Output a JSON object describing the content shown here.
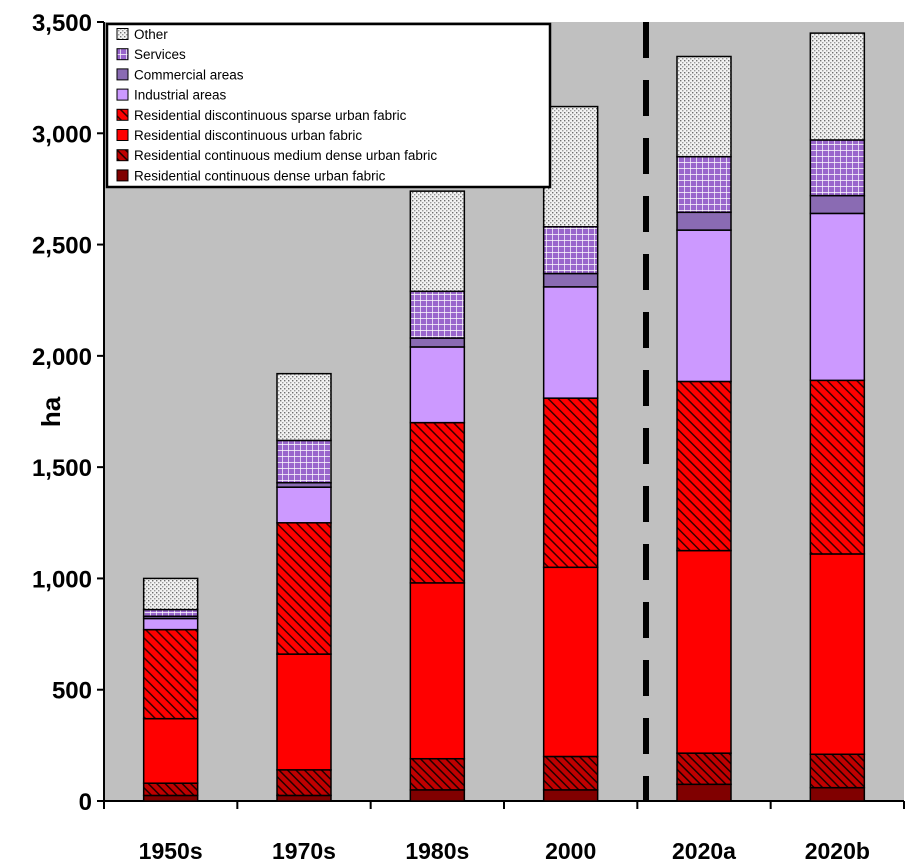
{
  "chart_data": {
    "type": "bar",
    "stacked": true,
    "ylabel": "ha",
    "xlabel": "",
    "ylim": [
      0,
      3500
    ],
    "yticks": [
      0,
      500,
      1000,
      1500,
      2000,
      2500,
      3000,
      3500
    ],
    "ytick_labels": [
      "0",
      "500",
      "1,000",
      "1,500",
      "2,000",
      "2,500",
      "3,000",
      "3,500"
    ],
    "categories": [
      "1950s",
      "1970s",
      "1980s",
      "2000",
      "2020a",
      "2020b"
    ],
    "divider_after_category": "2000",
    "grid": false,
    "legend_position": "top-left",
    "series": [
      {
        "name": "Residential continuous dense urban fabric",
        "color": "#800000",
        "pattern": "solid",
        "values": [
          25,
          25,
          50,
          50,
          75,
          60
        ]
      },
      {
        "name": "Residential continuous medium dense urban fabric",
        "color": "#6b0000",
        "pattern": "hatch-dense",
        "values": [
          55,
          115,
          140,
          150,
          140,
          150
        ]
      },
      {
        "name": "Residential discontinuous urban fabric",
        "color": "#ff0000",
        "pattern": "solid",
        "values": [
          290,
          520,
          790,
          850,
          910,
          900
        ]
      },
      {
        "name": "Residential discontinuous sparse urban fabric",
        "color": "#cc0000",
        "pattern": "hatch",
        "values": [
          400,
          590,
          720,
          760,
          760,
          780
        ]
      },
      {
        "name": "Industrial areas",
        "color": "#cc99ff",
        "pattern": "solid",
        "values": [
          50,
          160,
          340,
          500,
          680,
          750
        ]
      },
      {
        "name": "Commercial areas",
        "color": "#8a6bb3",
        "pattern": "solid",
        "values": [
          10,
          20,
          40,
          60,
          80,
          80
        ]
      },
      {
        "name": "Services",
        "color": "#9966cc",
        "pattern": "grid",
        "values": [
          30,
          190,
          210,
          210,
          250,
          250
        ]
      },
      {
        "name": "Other",
        "color": "#e6e6e6",
        "pattern": "dots",
        "values": [
          140,
          300,
          450,
          540,
          450,
          480
        ]
      }
    ]
  }
}
